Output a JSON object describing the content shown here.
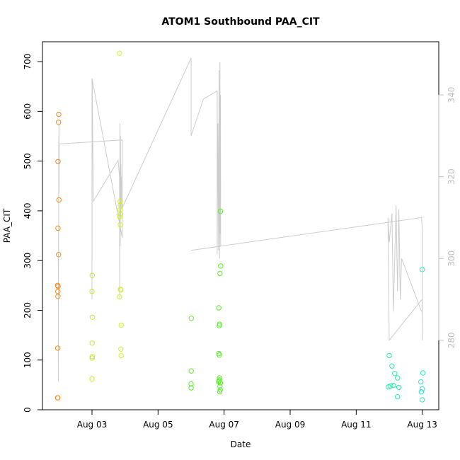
{
  "chart_data": {
    "type": "scatter",
    "title": "ATOM1 Southbound PAA_CIT",
    "xlabel": "Date",
    "ylabel": "PAA_CIT",
    "x_start": "Aug 01 12:00",
    "x_end": "Aug 13 12:00",
    "x_ticks": [
      "Aug 03",
      "Aug 05",
      "Aug 07",
      "Aug 09",
      "Aug 11",
      "Aug 13"
    ],
    "ylim": [
      0,
      740
    ],
    "y_ticks": [
      0,
      100,
      200,
      300,
      400,
      500,
      600,
      700
    ],
    "y2lim": [
      263,
      353
    ],
    "y2_ticks": [
      280,
      300,
      320,
      340
    ],
    "points": [
      {
        "x": "Aug 01 23:00",
        "y": 24,
        "color": "#f28a22"
      },
      {
        "x": "Aug 01 23:10",
        "y": 24,
        "color": "#f28a22"
      },
      {
        "x": "Aug 01 23:05",
        "y": 124,
        "color": "#f28a22"
      },
      {
        "x": "Aug 01 23:15",
        "y": 228,
        "color": "#f28a22"
      },
      {
        "x": "Aug 01 23:10",
        "y": 238,
        "color": "#f28a22"
      },
      {
        "x": "Aug 01 23:20",
        "y": 248,
        "color": "#f28a22"
      },
      {
        "x": "Aug 01 23:00",
        "y": 250,
        "color": "#f28a22"
      },
      {
        "x": "Aug 01 23:15",
        "y": 365,
        "color": "#f28a22"
      },
      {
        "x": "Aug 01 23:20",
        "y": 499,
        "color": "#f28a22"
      },
      {
        "x": "Aug 01 23:45",
        "y": 312,
        "color": "#f28a22"
      },
      {
        "x": "Aug 02 00:00",
        "y": 422,
        "color": "#f28a22"
      },
      {
        "x": "Aug 01 23:40",
        "y": 578,
        "color": "#f28a22"
      },
      {
        "x": "Aug 01 23:50",
        "y": 594,
        "color": "#f28a22"
      },
      {
        "x": "Aug 03 00:00",
        "y": 62,
        "color": "#c5ea24"
      },
      {
        "x": "Aug 03 00:05",
        "y": 104,
        "color": "#c5ea24"
      },
      {
        "x": "Aug 03 00:15",
        "y": 107,
        "color": "#c5ea24"
      },
      {
        "x": "Aug 03 00:05",
        "y": 134,
        "color": "#c5ea24"
      },
      {
        "x": "Aug 03 00:20",
        "y": 186,
        "color": "#c5ea24"
      },
      {
        "x": "Aug 03 00:00",
        "y": 238,
        "color": "#c5ea24"
      },
      {
        "x": "Aug 03 00:10",
        "y": 270,
        "color": "#c5ea24"
      },
      {
        "x": "Aug 03 20:00",
        "y": 717,
        "color": "#d4f027"
      },
      {
        "x": "Aug 03 20:00",
        "y": 227,
        "color": "#d4f027"
      },
      {
        "x": "Aug 03 20:40",
        "y": 242,
        "color": "#d4f027"
      },
      {
        "x": "Aug 03 21:00",
        "y": 241,
        "color": "#d4f027"
      },
      {
        "x": "Aug 03 20:30",
        "y": 372,
        "color": "#d4f027"
      },
      {
        "x": "Aug 03 20:10",
        "y": 388,
        "color": "#d4f027"
      },
      {
        "x": "Aug 03 20:50",
        "y": 393,
        "color": "#d4f027"
      },
      {
        "x": "Aug 03 20:20",
        "y": 402,
        "color": "#d4f027"
      },
      {
        "x": "Aug 03 20:40",
        "y": 412,
        "color": "#d4f027"
      },
      {
        "x": "Aug 03 20:30",
        "y": 419,
        "color": "#d4f027"
      },
      {
        "x": "Aug 03 21:00",
        "y": 122,
        "color": "#d4f027"
      },
      {
        "x": "Aug 03 21:10",
        "y": 109,
        "color": "#d4f027"
      },
      {
        "x": "Aug 03 21:15",
        "y": 170,
        "color": "#d4f027"
      },
      {
        "x": "Aug 06 00:00",
        "y": 44,
        "color": "#5bf02a"
      },
      {
        "x": "Aug 06 00:00",
        "y": 52,
        "color": "#5bf02a"
      },
      {
        "x": "Aug 06 00:05",
        "y": 78,
        "color": "#5bf02a"
      },
      {
        "x": "Aug 06 00:10",
        "y": 184,
        "color": "#5bf02a"
      },
      {
        "x": "Aug 06 20:00",
        "y": 56,
        "color": "#5bf02a"
      },
      {
        "x": "Aug 06 20:20",
        "y": 58,
        "color": "#5bf02a"
      },
      {
        "x": "Aug 06 20:30",
        "y": 60,
        "color": "#5bf02a"
      },
      {
        "x": "Aug 06 20:40",
        "y": 64,
        "color": "#5bf02a"
      },
      {
        "x": "Aug 06 20:10",
        "y": 113,
        "color": "#5bf02a"
      },
      {
        "x": "Aug 06 20:30",
        "y": 110,
        "color": "#5bf02a"
      },
      {
        "x": "Aug 06 20:10",
        "y": 205,
        "color": "#5bf02a"
      },
      {
        "x": "Aug 06 20:30",
        "y": 169,
        "color": "#5bf02a"
      },
      {
        "x": "Aug 06 20:40",
        "y": 172,
        "color": "#5bf02a"
      },
      {
        "x": "Aug 06 21:00",
        "y": 274,
        "color": "#5bf02a"
      },
      {
        "x": "Aug 06 21:30",
        "y": 289,
        "color": "#5bf02a"
      },
      {
        "x": "Aug 06 21:20",
        "y": 399,
        "color": "#5bf02a"
      },
      {
        "x": "Aug 06 20:50",
        "y": 36,
        "color": "#5bf02a"
      },
      {
        "x": "Aug 06 21:10",
        "y": 40,
        "color": "#5bf02a"
      },
      {
        "x": "Aug 06 21:00",
        "y": 47,
        "color": "#5bf02a"
      },
      {
        "x": "Aug 06 21:20",
        "y": 54,
        "color": "#5bf02a"
      },
      {
        "x": "Aug 12 00:00",
        "y": 109,
        "color": "#2ce8a8"
      },
      {
        "x": "Aug 12 02:00",
        "y": 88,
        "color": "#2ce8a8"
      },
      {
        "x": "Aug 12 04:00",
        "y": 73,
        "color": "#2ce8a8"
      },
      {
        "x": "Aug 12 06:00",
        "y": 64,
        "color": "#2ce8a8"
      },
      {
        "x": "Aug 12 01:00",
        "y": 48,
        "color": "#2ce8a8"
      },
      {
        "x": "Aug 12 03:00",
        "y": 49,
        "color": "#2ce8a8"
      },
      {
        "x": "Aug 11 23:30",
        "y": 46,
        "color": "#2ce8a8"
      },
      {
        "x": "Aug 12 07:00",
        "y": 45,
        "color": "#2ce8a8"
      },
      {
        "x": "Aug 12 06:00",
        "y": 26,
        "color": "#2ce8a8"
      },
      {
        "x": "Aug 13 00:00",
        "y": 282,
        "color": "#2ce8c8"
      },
      {
        "x": "Aug 12 23:00",
        "y": 56,
        "color": "#2ce8c8"
      },
      {
        "x": "Aug 13 00:30",
        "y": 74,
        "color": "#2ce8c8"
      },
      {
        "x": "Aug 13 00:00",
        "y": 42,
        "color": "#2ce8c8"
      },
      {
        "x": "Aug 12 23:20",
        "y": 36,
        "color": "#2ce8c8"
      },
      {
        "x": "Aug 13 00:00",
        "y": 20,
        "color": "#2ce8c8"
      }
    ],
    "secondary_series": {
      "axis": "right",
      "color": "#cccccc",
      "points": [
        [
          "Aug 01 23:30",
          270
        ],
        [
          "Aug 01 23:30",
          300
        ],
        [
          "Aug 01 23:35",
          274
        ],
        [
          "Aug 01 23:40",
          305
        ],
        [
          "Aug 01 23:45",
          298
        ],
        [
          "Aug 01 23:50",
          330
        ],
        [
          "Aug 01 23:55",
          322
        ],
        [
          "Aug 02 00:00",
          333
        ],
        [
          "Aug 02 00:05",
          316
        ],
        [
          "Aug 02 00:10",
          328
        ],
        [
          "Aug 03 22:00",
          329
        ],
        [
          "Aug 03 22:00",
          305
        ],
        [
          "Aug 03 00:00",
          344
        ],
        [
          "Aug 03 00:00",
          290
        ],
        [
          "Aug 03 00:10",
          343
        ],
        [
          "Aug 03 01:00",
          314
        ],
        [
          "Aug 03 19:00",
          324
        ],
        [
          "Aug 03 20:00",
          320
        ],
        [
          "Aug 03 20:10",
          290
        ],
        [
          "Aug 03 20:20",
          333
        ],
        [
          "Aug 03 20:30",
          303
        ],
        [
          "Aug 03 20:40",
          330
        ],
        [
          "Aug 03 20:50",
          310
        ],
        [
          "Aug 03 21:00",
          323
        ],
        [
          "Aug 03 21:10",
          316
        ],
        [
          "Aug 03 21:20",
          320
        ],
        [
          "Aug 03 21:30",
          312
        ],
        [
          "Aug 06 00:00",
          349
        ],
        [
          "Aug 06 00:00",
          330
        ],
        [
          "Aug 06 09:00",
          339
        ],
        [
          "Aug 06 19:00",
          341
        ],
        [
          "Aug 06 19:00",
          301
        ],
        [
          "Aug 06 19:30",
          333
        ],
        [
          "Aug 06 20:00",
          302
        ],
        [
          "Aug 06 20:20",
          346
        ],
        [
          "Aug 06 20:40",
          300
        ],
        [
          "Aug 06 21:00",
          348
        ],
        [
          "Aug 06 21:10",
          306
        ],
        [
          "Aug 06 21:20",
          340
        ],
        [
          "Aug 06 21:30",
          303
        ],
        [
          "Aug 06 00:00",
          302
        ],
        [
          "Aug 12 23:30",
          310
        ],
        [
          "Aug 13 00:00",
          307
        ],
        [
          "Aug 13 00:00",
          280
        ],
        [
          "Aug 12 23:50",
          290
        ],
        [
          "Aug 12 00:00",
          280
        ],
        [
          "Aug 11 23:00",
          310
        ],
        [
          "Aug 12 00:00",
          304
        ],
        [
          "Aug 12 02:00",
          311
        ],
        [
          "Aug 12 03:00",
          287
        ],
        [
          "Aug 12 05:00",
          313
        ],
        [
          "Aug 12 06:00",
          292
        ],
        [
          "Aug 12 07:00",
          312
        ],
        [
          "Aug 12 08:00",
          290
        ],
        [
          "Aug 12 09:00",
          300
        ],
        [
          "Aug 12 23:30",
          287
        ]
      ]
    },
    "grid": false,
    "legend": "none"
  }
}
